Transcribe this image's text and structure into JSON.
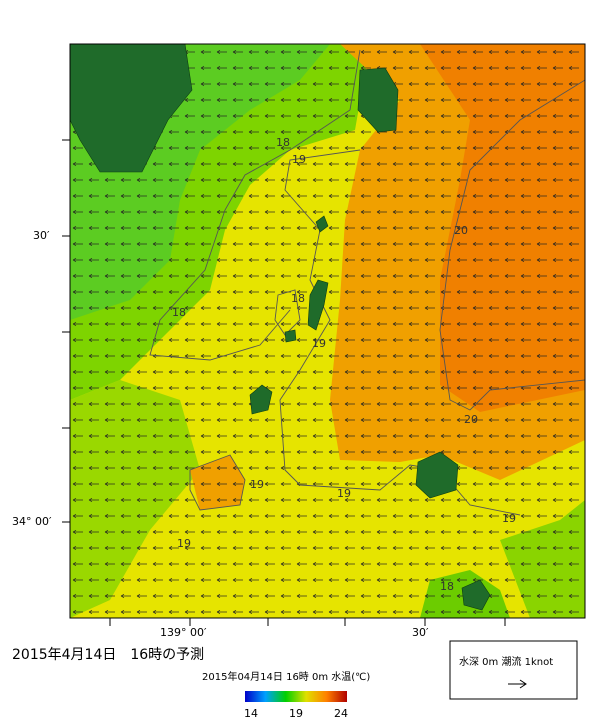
{
  "map": {
    "lat_labels": [
      "30′",
      "34° 00′"
    ],
    "lon_labels": [
      "139° 00′",
      "30′"
    ],
    "contour_labels": [
      "18",
      "19",
      "20",
      "18",
      "18",
      "19",
      "20",
      "19",
      "19",
      "19",
      "19",
      "18"
    ],
    "caption": "2015年4月14日　16時の予測",
    "colorbar": {
      "title": "2015年04月14日 16時 0m 水温(℃)",
      "ticks": [
        "14",
        "19",
        "24"
      ]
    },
    "legend": "水深 0m 潮流 1knot"
  }
}
